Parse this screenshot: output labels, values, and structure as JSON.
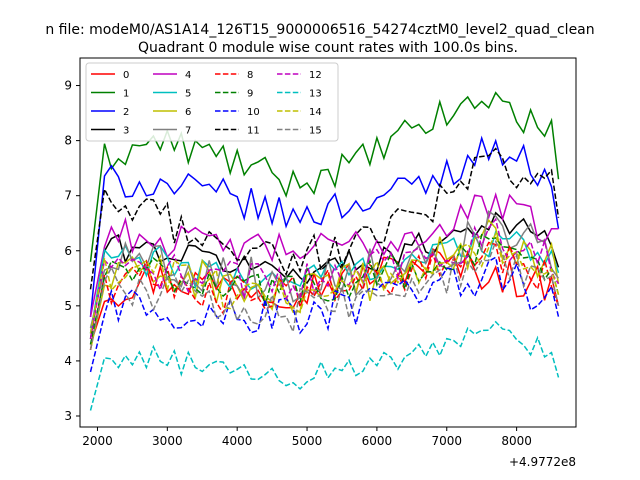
{
  "chart_data": {
    "type": "line",
    "suptitle": "n file: modeM0/AS1A14_126T15_9000006516_54274cztM0_level2_quad_clean",
    "title": "Quadrant 0 module wise count rates with 100.0s bins.",
    "xlabel": "",
    "ylabel": "",
    "offset_label": "+4.9772e8",
    "xlim": [
      1750,
      8850
    ],
    "ylim": [
      2.8,
      9.5
    ],
    "x_start": 1900,
    "x_step": 100,
    "x_ticks": [
      2000,
      3000,
      4000,
      5000,
      6000,
      7000,
      8000
    ],
    "y_ticks": [
      3,
      4,
      5,
      6,
      7,
      8,
      9
    ],
    "grid": false,
    "legend": {
      "location": "upper-left",
      "columns": 4
    },
    "series": [
      {
        "name": "0",
        "color": "#ff0000",
        "dash": "solid",
        "base": 5.6,
        "amp": 0.35,
        "trend": [
          5.2,
          5.5,
          5.4,
          5.3,
          5.5,
          5.8,
          5.6,
          5.3
        ],
        "first": 4.3,
        "last": 5.0
      },
      {
        "name": "1",
        "color": "#008000",
        "dash": "solid",
        "base": 8.0,
        "amp": 0.3,
        "trend": [
          7.6,
          8.0,
          7.7,
          7.2,
          7.6,
          8.3,
          8.8,
          8.0
        ],
        "first": 5.8,
        "last": 7.3
      },
      {
        "name": "2",
        "color": "#0000ff",
        "dash": "solid",
        "base": 7.3,
        "amp": 0.3,
        "trend": [
          7.3,
          7.2,
          7.0,
          6.6,
          6.9,
          7.2,
          7.9,
          7.3
        ],
        "first": 4.8,
        "last": 6.4
      },
      {
        "name": "3",
        "color": "#000000",
        "dash": "solid",
        "base": 6.0,
        "amp": 0.25,
        "trend": [
          6.1,
          6.0,
          5.8,
          5.6,
          5.8,
          6.1,
          6.6,
          6.1
        ],
        "first": 4.4,
        "last": 5.7
      },
      {
        "name": "4",
        "color": "#bf00bf",
        "dash": "solid",
        "base": 6.4,
        "amp": 0.3,
        "trend": [
          6.4,
          6.2,
          6.1,
          6.0,
          6.1,
          6.3,
          6.9,
          6.3
        ],
        "first": 4.8,
        "last": 6.4
      },
      {
        "name": "5",
        "color": "#00bfbf",
        "dash": "solid",
        "base": 5.8,
        "amp": 0.3,
        "trend": [
          5.9,
          5.8,
          5.5,
          5.5,
          5.7,
          5.9,
          6.2,
          5.8
        ],
        "first": 4.5,
        "last": 5.6
      },
      {
        "name": "6",
        "color": "#bfbf00",
        "dash": "solid",
        "base": 5.5,
        "amp": 0.4,
        "trend": [
          5.4,
          5.6,
          5.4,
          5.1,
          5.4,
          5.8,
          6.2,
          5.7
        ],
        "first": 4.2,
        "last": 5.4
      },
      {
        "name": "7",
        "color": "#808080",
        "dash": "solid",
        "base": 5.8,
        "amp": 0.4,
        "trend": [
          6.0,
          5.8,
          5.6,
          5.4,
          5.6,
          5.9,
          6.4,
          5.9
        ],
        "first": 4.6,
        "last": 5.5
      },
      {
        "name": "8",
        "color": "#ff0000",
        "dash": "dashed",
        "base": 5.4,
        "amp": 0.35,
        "trend": [
          5.3,
          5.5,
          5.2,
          5.2,
          5.4,
          5.6,
          5.9,
          5.4
        ],
        "first": 4.2,
        "last": 5.0
      },
      {
        "name": "9",
        "color": "#008000",
        "dash": "dashed",
        "base": 5.6,
        "amp": 0.35,
        "trend": [
          5.5,
          5.6,
          5.4,
          5.3,
          5.5,
          5.7,
          6.0,
          5.6
        ],
        "first": 4.3,
        "last": 5.2
      },
      {
        "name": "10",
        "color": "#0000ff",
        "dash": "dashed",
        "base": 5.0,
        "amp": 0.4,
        "trend": [
          5.1,
          5.0,
          4.8,
          4.8,
          5.0,
          5.2,
          5.6,
          5.1
        ],
        "first": 3.8,
        "last": 4.8
      },
      {
        "name": "11",
        "color": "#000000",
        "dash": "dashed",
        "base": 6.6,
        "amp": 0.35,
        "trend": [
          6.9,
          6.6,
          6.1,
          5.9,
          6.1,
          6.7,
          7.6,
          7.1
        ],
        "first": 5.3,
        "last": 6.6
      },
      {
        "name": "12",
        "color": "#bf00bf",
        "dash": "dashed",
        "base": 5.7,
        "amp": 0.35,
        "trend": [
          5.8,
          5.6,
          5.5,
          5.4,
          5.7,
          5.9,
          6.3,
          5.8
        ],
        "first": 4.4,
        "last": 5.4
      },
      {
        "name": "13",
        "color": "#00bfbf",
        "dash": "dashed",
        "base": 4.1,
        "amp": 0.25,
        "trend": [
          4.2,
          4.0,
          3.8,
          3.7,
          3.9,
          4.1,
          4.5,
          4.2
        ],
        "first": 3.1,
        "last": 3.7
      },
      {
        "name": "14",
        "color": "#bfbf00",
        "dash": "dashed",
        "base": 5.6,
        "amp": 0.35,
        "trend": [
          5.5,
          5.6,
          5.3,
          5.2,
          5.4,
          5.7,
          6.0,
          5.6
        ],
        "first": 4.5,
        "last": 5.2
      },
      {
        "name": "15",
        "color": "#808080",
        "dash": "dashed",
        "base": 5.3,
        "amp": 0.4,
        "trend": [
          5.3,
          5.3,
          5.1,
          4.9,
          5.1,
          5.4,
          5.8,
          5.3
        ],
        "first": 4.2,
        "last": 5.0
      }
    ]
  }
}
